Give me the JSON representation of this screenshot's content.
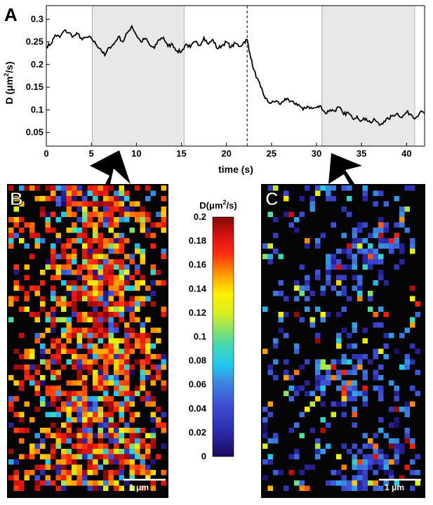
{
  "panel_labels": {
    "a": "A",
    "b": "B",
    "c": "C"
  },
  "colors": {
    "line": "#000000",
    "shade": "#e8e8e8",
    "shade_edge": "#b0b0b0",
    "map_background": "#050505",
    "scale_bar": "#ffffff"
  },
  "chart_data": [
    {
      "type": "line",
      "panel": "A",
      "xlabel": "time (s)",
      "ylabel": "D (μm²/s)",
      "ylabel_parts": {
        "prefix": "D (",
        "unit": "μm",
        "exp": "2",
        "suffix": "/s)"
      },
      "xlim": [
        0,
        42
      ],
      "ylim": [
        0.02,
        0.33
      ],
      "xticks": [
        0,
        5,
        10,
        15,
        20,
        25,
        30,
        35,
        40
      ],
      "yticks": [
        0.05,
        0.1,
        0.15,
        0.2,
        0.25,
        0.3
      ],
      "ytick_labels": [
        "0.05",
        "0.1",
        "0.15",
        "0.2",
        "0.25",
        "0.3"
      ],
      "shaded_intervals": [
        [
          5.1,
          15.3
        ],
        [
          30.6,
          40.9
        ]
      ],
      "dashed_marker_x": 22.3,
      "series": [
        {
          "x": [
            0,
            0.5,
            1,
            1.5,
            2,
            2.5,
            3,
            3.5,
            4,
            4.5,
            5,
            5.5,
            6,
            6.5,
            7,
            7.5,
            8,
            8.5,
            9,
            9.5,
            10,
            10.5,
            11,
            11.5,
            12,
            12.5,
            13,
            13.5,
            14,
            14.5,
            15,
            15.5,
            16,
            16.5,
            17,
            17.5,
            18,
            18.5,
            19,
            19.5,
            20,
            20.5,
            21,
            21.5,
            22,
            22.3,
            22.6,
            23,
            23.4,
            23.8,
            24.2,
            24.6,
            25,
            25.5,
            26,
            26.5,
            27,
            27.5,
            28,
            28.5,
            29,
            29.5,
            30,
            30.5,
            31,
            31.5,
            32,
            32.5,
            33,
            33.5,
            34,
            34.5,
            35,
            35.5,
            36,
            36.5,
            37,
            37.5,
            38,
            38.5,
            39,
            39.5,
            40,
            40.5,
            41,
            41.5,
            42
          ],
          "y": [
            0.24,
            0.245,
            0.265,
            0.26,
            0.275,
            0.27,
            0.262,
            0.268,
            0.255,
            0.26,
            0.258,
            0.245,
            0.235,
            0.22,
            0.238,
            0.245,
            0.262,
            0.25,
            0.27,
            0.285,
            0.265,
            0.25,
            0.258,
            0.242,
            0.236,
            0.255,
            0.26,
            0.24,
            0.245,
            0.23,
            0.228,
            0.245,
            0.238,
            0.25,
            0.242,
            0.26,
            0.245,
            0.255,
            0.235,
            0.242,
            0.25,
            0.238,
            0.247,
            0.24,
            0.25,
            0.255,
            0.225,
            0.19,
            0.17,
            0.15,
            0.13,
            0.118,
            0.115,
            0.12,
            0.112,
            0.125,
            0.118,
            0.115,
            0.112,
            0.1,
            0.108,
            0.103,
            0.105,
            0.108,
            0.092,
            0.1,
            0.098,
            0.106,
            0.09,
            0.094,
            0.081,
            0.086,
            0.076,
            0.081,
            0.072,
            0.078,
            0.066,
            0.075,
            0.08,
            0.088,
            0.092,
            0.083,
            0.095,
            0.09,
            0.082,
            0.095,
            0.092
          ]
        }
      ]
    },
    {
      "type": "heatmap",
      "panel": "B",
      "colorbar_label_parts": {
        "prefix": "D(",
        "unit": "μm",
        "exp": "2",
        "suffix": "/s)"
      },
      "color_range": [
        0,
        0.2
      ],
      "scale_bar_label": "1 μm"
    },
    {
      "type": "heatmap",
      "panel": "C",
      "scale_bar_label": "1 μm"
    }
  ],
  "colorbar": {
    "label_prefix": "D(",
    "label_unit": "μm",
    "label_exp": "2",
    "label_suffix": "/s)",
    "ticks": [
      "0.2",
      "0.18",
      "0.16",
      "0.14",
      "0.12",
      "0.1",
      "0.08",
      "0.06",
      "0.04",
      "0.02",
      "0"
    ]
  }
}
